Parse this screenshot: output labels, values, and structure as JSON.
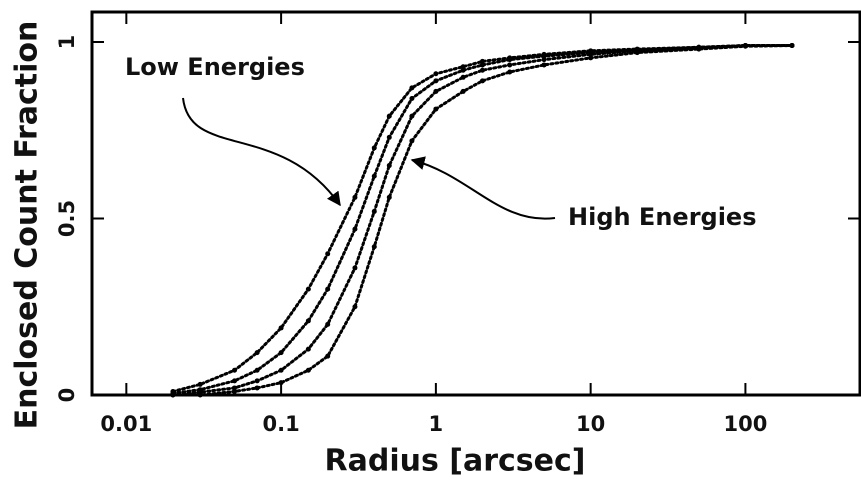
{
  "chart_data": {
    "type": "line",
    "xlabel": "Radius [arcsec]",
    "ylabel": "Enclosed Count Fraction",
    "annotations": [
      "Low Energies",
      "High Energies"
    ],
    "xscale": "log",
    "xlim": [
      0.006,
      550
    ],
    "ylim": [
      0,
      1.085
    ],
    "xticks": [
      0.01,
      0.1,
      1,
      10,
      100
    ],
    "yticks": [
      0,
      0.5,
      1
    ],
    "x": [
      0.02,
      0.03,
      0.05,
      0.07,
      0.1,
      0.15,
      0.2,
      0.3,
      0.4,
      0.5,
      0.7,
      1,
      1.5,
      2,
      3,
      5,
      10,
      20,
      50,
      100,
      200
    ],
    "series": [
      {
        "color": "#000000",
        "values": [
          0.01,
          0.03,
          0.07,
          0.12,
          0.19,
          0.3,
          0.4,
          0.56,
          0.7,
          0.79,
          0.87,
          0.91,
          0.93,
          0.945,
          0.955,
          0.965,
          0.975,
          0.98,
          0.985,
          0.99,
          0.99
        ]
      },
      {
        "color": "#000000",
        "values": [
          0.005,
          0.015,
          0.04,
          0.07,
          0.12,
          0.21,
          0.3,
          0.47,
          0.62,
          0.73,
          0.84,
          0.89,
          0.92,
          0.935,
          0.95,
          0.96,
          0.97,
          0.978,
          0.985,
          0.99,
          0.99
        ]
      },
      {
        "color": "#000000",
        "values": [
          0,
          0.008,
          0.02,
          0.04,
          0.07,
          0.13,
          0.2,
          0.36,
          0.52,
          0.65,
          0.79,
          0.86,
          0.9,
          0.92,
          0.935,
          0.95,
          0.965,
          0.975,
          0.983,
          0.99,
          0.99
        ]
      },
      {
        "color": "#000000",
        "values": [
          0,
          0,
          0.01,
          0.02,
          0.035,
          0.07,
          0.11,
          0.25,
          0.42,
          0.56,
          0.72,
          0.81,
          0.86,
          0.89,
          0.915,
          0.935,
          0.955,
          0.97,
          0.98,
          0.988,
          0.99
        ]
      }
    ]
  }
}
